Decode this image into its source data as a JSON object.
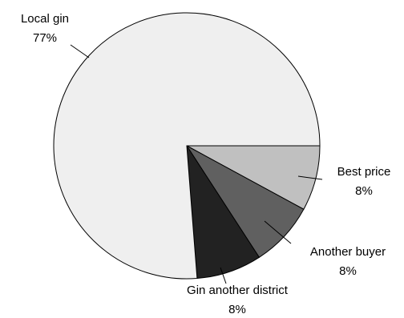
{
  "chart_data": {
    "type": "pie",
    "start_angle_deg": 0,
    "direction": "clockwise",
    "slices": [
      {
        "label": "Best price",
        "value": 8,
        "value_label": "8%",
        "color": "#c0c0c0"
      },
      {
        "label": "Another buyer",
        "value": 8,
        "value_label": "8%",
        "color": "#606060"
      },
      {
        "label": "Gin another district",
        "value": 8,
        "value_label": "8%",
        "color": "#222222"
      },
      {
        "label": "Local gin",
        "value": 77,
        "value_label": "77%",
        "color": "#efefef"
      }
    ]
  }
}
